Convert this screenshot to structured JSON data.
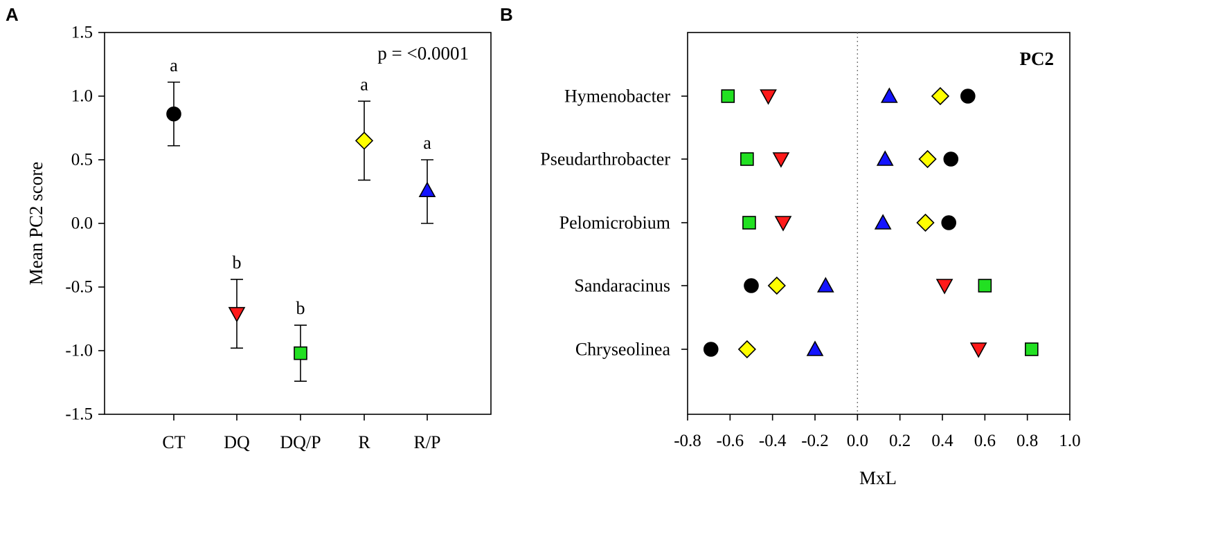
{
  "colors": {
    "CT": "#000000",
    "DQ": "#ff1a1a",
    "DQ/P": "#22e022",
    "R": "#ffff00",
    "R/P": "#1414ff"
  },
  "markers": {
    "CT": "circle",
    "DQ": "triangle-down",
    "DQ/P": "square",
    "R": "diamond",
    "R/P": "triangle-up"
  },
  "chart_data": [
    {
      "panel": "A",
      "type": "scatter",
      "title": "",
      "xlabel": "",
      "ylabel": "Mean PC2 score",
      "ylim": [
        -1.5,
        1.5
      ],
      "yticks": [
        "-1.5",
        "-1.0",
        "-0.5",
        "0.0",
        "0.5",
        "1.0",
        "1.5"
      ],
      "annotation": "p = <0.0001",
      "categories": [
        "CT",
        "DQ",
        "DQ/P",
        "R",
        "R/P"
      ],
      "values": [
        0.86,
        -0.71,
        -1.02,
        0.65,
        0.26
      ],
      "err_low": [
        0.61,
        -0.98,
        -1.24,
        0.34,
        0.0
      ],
      "err_high": [
        1.11,
        -0.44,
        -0.8,
        0.96,
        0.5
      ],
      "letters": [
        "a",
        "b",
        "b",
        "a",
        "a"
      ]
    },
    {
      "panel": "B",
      "type": "scatter",
      "title": "PC2",
      "xlabel": "MxL",
      "ylabel": "",
      "xlim": [
        -0.8,
        1.0
      ],
      "xticks": [
        "-0.8",
        "-0.6",
        "-0.4",
        "-0.2",
        "0.0",
        "0.2",
        "0.4",
        "0.6",
        "0.8",
        "1.0"
      ],
      "taxa": [
        "Hymenobacter",
        "Pseudarthrobacter",
        "Pelomicrobium",
        "Sandaracinus",
        "Chryseolinea"
      ],
      "series": [
        {
          "name": "CT",
          "values": [
            0.52,
            0.44,
            0.43,
            -0.5,
            -0.69
          ]
        },
        {
          "name": "DQ",
          "values": [
            -0.42,
            -0.36,
            -0.35,
            0.41,
            0.57
          ]
        },
        {
          "name": "DQ/P",
          "values": [
            -0.61,
            -0.52,
            -0.51,
            0.6,
            0.82
          ]
        },
        {
          "name": "R",
          "values": [
            0.39,
            0.33,
            0.32,
            -0.38,
            -0.52
          ]
        },
        {
          "name": "R/P",
          "values": [
            0.15,
            0.13,
            0.12,
            -0.15,
            -0.2
          ]
        }
      ]
    }
  ]
}
